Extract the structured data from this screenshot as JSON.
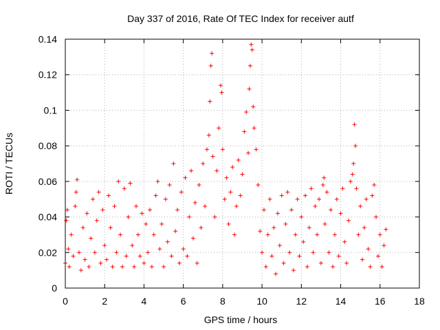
{
  "chart_data": {
    "type": "scatter",
    "title": "Day 337 of 2016, Rate Of TEC Index for receiver autf",
    "xlabel": "GPS time / hours",
    "ylabel": "ROTI / TECUs",
    "xlim": [
      0,
      18
    ],
    "ylim": [
      0,
      0.14
    ],
    "xticks": [
      0,
      2,
      4,
      6,
      8,
      10,
      12,
      14,
      16,
      18
    ],
    "yticks": [
      0,
      0.02,
      0.04,
      0.06,
      0.08,
      0.1,
      0.12,
      0.14
    ],
    "xtick_labels": [
      "0",
      "2",
      "4",
      "6",
      "8",
      "10",
      "12",
      "14",
      "16",
      "18"
    ],
    "ytick_labels": [
      "0",
      "0.02",
      "0.04",
      "0.06",
      "0.08",
      "0.1",
      "0.12",
      "0.14"
    ],
    "grid": true,
    "marker": "+",
    "color": "#ff0000",
    "series": [
      {
        "name": "ROTI",
        "points": [
          [
            0.0,
            0.014
          ],
          [
            0.05,
            0.038
          ],
          [
            0.1,
            0.044
          ],
          [
            0.15,
            0.022
          ],
          [
            0.2,
            0.012
          ],
          [
            0.3,
            0.03
          ],
          [
            0.4,
            0.018
          ],
          [
            0.5,
            0.046
          ],
          [
            0.55,
            0.054
          ],
          [
            0.6,
            0.061
          ],
          [
            0.7,
            0.02
          ],
          [
            0.8,
            0.01
          ],
          [
            0.9,
            0.034
          ],
          [
            1.0,
            0.016
          ],
          [
            1.1,
            0.042
          ],
          [
            1.2,
            0.012
          ],
          [
            1.3,
            0.028
          ],
          [
            1.4,
            0.05
          ],
          [
            1.5,
            0.02
          ],
          [
            1.6,
            0.038
          ],
          [
            1.7,
            0.054
          ],
          [
            1.8,
            0.014
          ],
          [
            1.9,
            0.044
          ],
          [
            2.0,
            0.024
          ],
          [
            2.1,
            0.016
          ],
          [
            2.2,
            0.052
          ],
          [
            2.3,
            0.034
          ],
          [
            2.4,
            0.012
          ],
          [
            2.5,
            0.046
          ],
          [
            2.6,
            0.02
          ],
          [
            2.7,
            0.06
          ],
          [
            2.8,
            0.03
          ],
          [
            2.9,
            0.012
          ],
          [
            3.0,
            0.056
          ],
          [
            3.1,
            0.018
          ],
          [
            3.2,
            0.04
          ],
          [
            3.3,
            0.059
          ],
          [
            3.4,
            0.024
          ],
          [
            3.5,
            0.012
          ],
          [
            3.6,
            0.046
          ],
          [
            3.7,
            0.03
          ],
          [
            3.8,
            0.018
          ],
          [
            3.9,
            0.042
          ],
          [
            4.0,
            0.014
          ],
          [
            4.1,
            0.036
          ],
          [
            4.2,
            0.02
          ],
          [
            4.3,
            0.044
          ],
          [
            4.4,
            0.012
          ],
          [
            4.5,
            0.03
          ],
          [
            4.6,
            0.052
          ],
          [
            4.7,
            0.06
          ],
          [
            4.8,
            0.022
          ],
          [
            4.9,
            0.036
          ],
          [
            5.0,
            0.012
          ],
          [
            5.1,
            0.05
          ],
          [
            5.2,
            0.026
          ],
          [
            5.3,
            0.058
          ],
          [
            5.4,
            0.018
          ],
          [
            5.5,
            0.07
          ],
          [
            5.6,
            0.032
          ],
          [
            5.7,
            0.044
          ],
          [
            5.8,
            0.014
          ],
          [
            5.9,
            0.054
          ],
          [
            6.0,
            0.022
          ],
          [
            6.1,
            0.062
          ],
          [
            6.2,
            0.018
          ],
          [
            6.3,
            0.04
          ],
          [
            6.4,
            0.066
          ],
          [
            6.5,
            0.028
          ],
          [
            6.6,
            0.048
          ],
          [
            6.7,
            0.014
          ],
          [
            6.8,
            0.058
          ],
          [
            6.9,
            0.034
          ],
          [
            7.0,
            0.07
          ],
          [
            7.1,
            0.046
          ],
          [
            7.2,
            0.078
          ],
          [
            7.3,
            0.086
          ],
          [
            7.35,
            0.105
          ],
          [
            7.4,
            0.125
          ],
          [
            7.45,
            0.132
          ],
          [
            7.5,
            0.074
          ],
          [
            7.6,
            0.04
          ],
          [
            7.7,
            0.066
          ],
          [
            7.8,
            0.09
          ],
          [
            7.9,
            0.114
          ],
          [
            7.95,
            0.11
          ],
          [
            8.0,
            0.078
          ],
          [
            8.1,
            0.05
          ],
          [
            8.2,
            0.062
          ],
          [
            8.3,
            0.036
          ],
          [
            8.4,
            0.054
          ],
          [
            8.5,
            0.068
          ],
          [
            8.6,
            0.03
          ],
          [
            8.7,
            0.046
          ],
          [
            8.8,
            0.072
          ],
          [
            8.9,
            0.052
          ],
          [
            9.0,
            0.064
          ],
          [
            9.1,
            0.088
          ],
          [
            9.2,
            0.099
          ],
          [
            9.3,
            0.076
          ],
          [
            9.35,
            0.112
          ],
          [
            9.4,
            0.125
          ],
          [
            9.45,
            0.137
          ],
          [
            9.5,
            0.134
          ],
          [
            9.55,
            0.102
          ],
          [
            9.6,
            0.09
          ],
          [
            9.7,
            0.078
          ],
          [
            9.8,
            0.058
          ],
          [
            9.9,
            0.032
          ],
          [
            10.0,
            0.02
          ],
          [
            10.1,
            0.044
          ],
          [
            10.2,
            0.012
          ],
          [
            10.3,
            0.03
          ],
          [
            10.4,
            0.05
          ],
          [
            10.5,
            0.018
          ],
          [
            10.6,
            0.034
          ],
          [
            10.7,
            0.008
          ],
          [
            10.8,
            0.042
          ],
          [
            10.9,
            0.024
          ],
          [
            11.0,
            0.052
          ],
          [
            11.1,
            0.014
          ],
          [
            11.2,
            0.036
          ],
          [
            11.3,
            0.054
          ],
          [
            11.4,
            0.02
          ],
          [
            11.5,
            0.044
          ],
          [
            11.6,
            0.01
          ],
          [
            11.7,
            0.03
          ],
          [
            11.8,
            0.05
          ],
          [
            11.9,
            0.018
          ],
          [
            12.0,
            0.04
          ],
          [
            12.1,
            0.026
          ],
          [
            12.2,
            0.052
          ],
          [
            12.3,
            0.012
          ],
          [
            12.4,
            0.034
          ],
          [
            12.5,
            0.056
          ],
          [
            12.6,
            0.02
          ],
          [
            12.7,
            0.046
          ],
          [
            12.8,
            0.03
          ],
          [
            12.9,
            0.05
          ],
          [
            13.0,
            0.014
          ],
          [
            13.1,
            0.058
          ],
          [
            13.15,
            0.062
          ],
          [
            13.2,
            0.036
          ],
          [
            13.3,
            0.054
          ],
          [
            13.4,
            0.02
          ],
          [
            13.5,
            0.044
          ],
          [
            13.6,
            0.012
          ],
          [
            13.7,
            0.03
          ],
          [
            13.8,
            0.05
          ],
          [
            13.9,
            0.018
          ],
          [
            14.0,
            0.042
          ],
          [
            14.1,
            0.056
          ],
          [
            14.2,
            0.026
          ],
          [
            14.3,
            0.014
          ],
          [
            14.4,
            0.038
          ],
          [
            14.5,
            0.06
          ],
          [
            14.6,
            0.064
          ],
          [
            14.65,
            0.07
          ],
          [
            14.7,
            0.092
          ],
          [
            14.75,
            0.08
          ],
          [
            14.8,
            0.056
          ],
          [
            14.9,
            0.03
          ],
          [
            15.0,
            0.046
          ],
          [
            15.1,
            0.016
          ],
          [
            15.2,
            0.034
          ],
          [
            15.3,
            0.05
          ],
          [
            15.4,
            0.022
          ],
          [
            15.5,
            0.012
          ],
          [
            15.6,
            0.052
          ],
          [
            15.7,
            0.058
          ],
          [
            15.8,
            0.04
          ],
          [
            15.9,
            0.018
          ],
          [
            16.0,
            0.03
          ],
          [
            16.1,
            0.012
          ],
          [
            16.2,
            0.024
          ],
          [
            16.3,
            0.033
          ]
        ]
      }
    ]
  }
}
